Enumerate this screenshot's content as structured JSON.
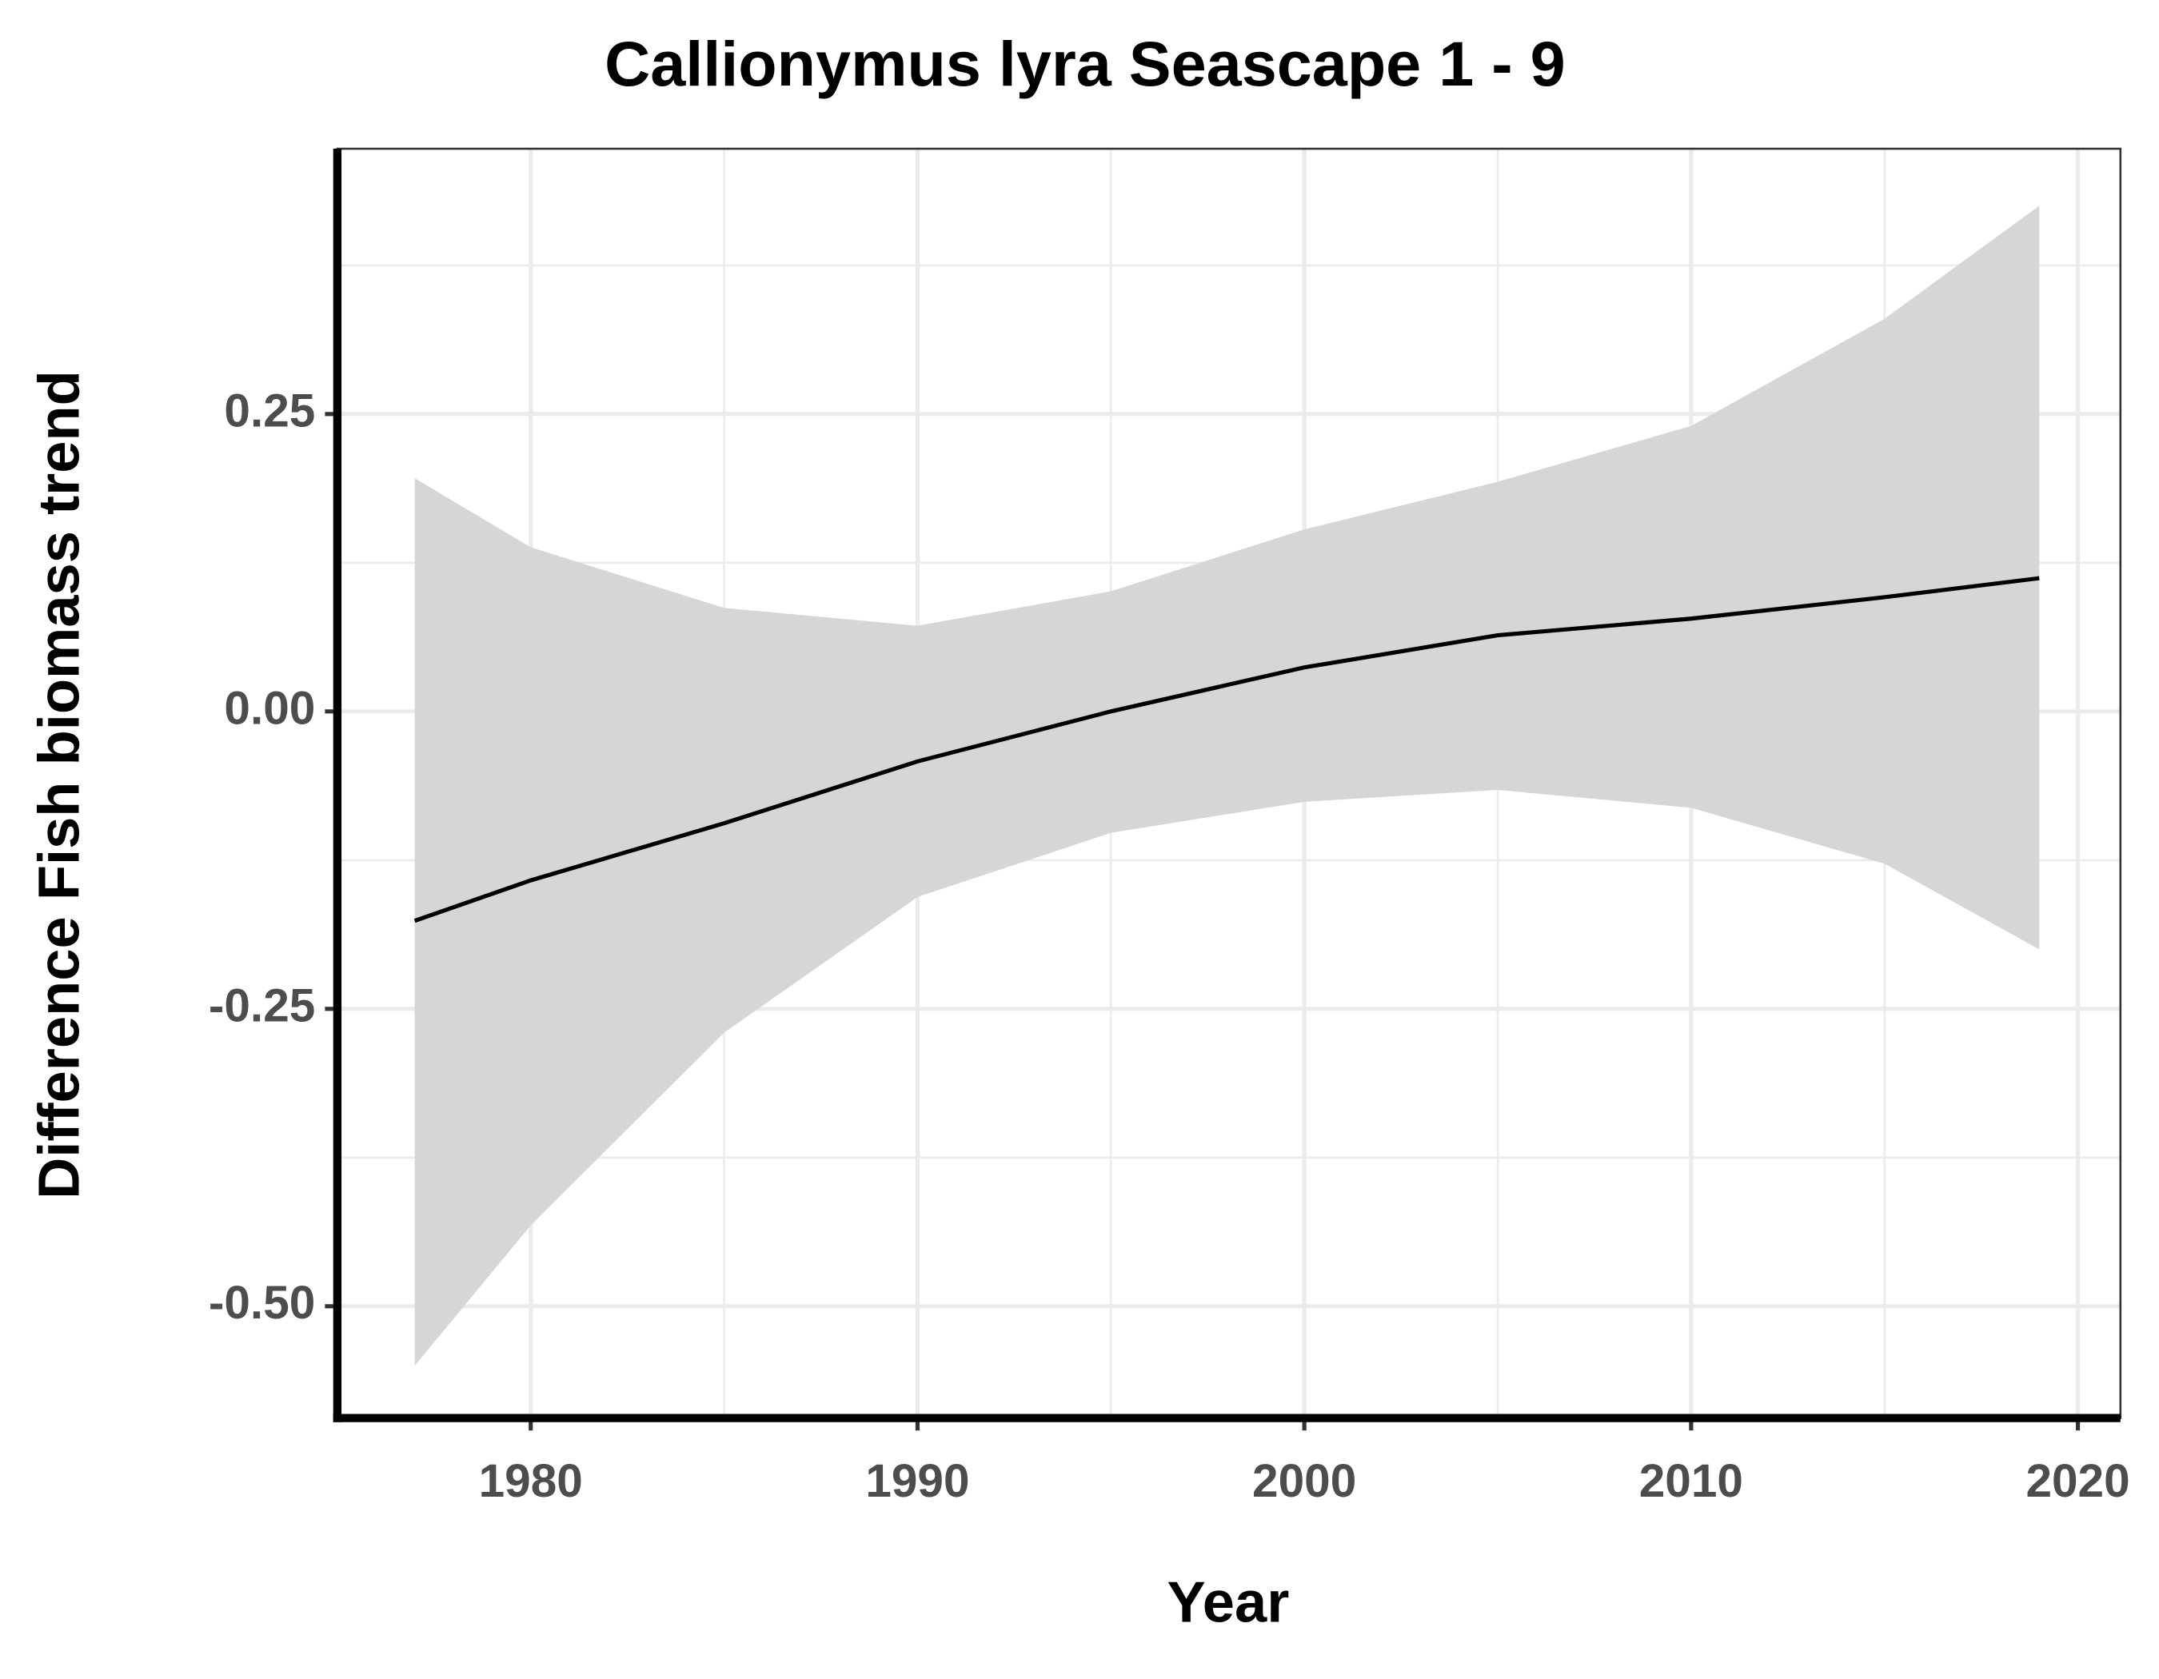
{
  "chart_data": {
    "type": "line",
    "title": "Callionymus lyra Seascape 1 - 9",
    "x_label": "Year",
    "y_label": "Difference Fish biomass trend",
    "x": [
      1977,
      1980,
      1985,
      1990,
      1995,
      2000,
      2005,
      2010,
      2015,
      2019
    ],
    "series": [
      {
        "color": "#000000",
        "band_color": "#d6d6d6",
        "values": [
          -0.176,
          -0.142,
          -0.094,
          -0.042,
          0.0,
          0.037,
          0.064,
          0.078,
          0.096,
          0.112
        ],
        "upper": [
          0.196,
          0.138,
          0.087,
          0.072,
          0.101,
          0.153,
          0.193,
          0.24,
          0.33,
          0.425
        ],
        "lower": [
          -0.55,
          -0.432,
          -0.27,
          -0.156,
          -0.102,
          -0.076,
          -0.066,
          -0.081,
          -0.128,
          -0.2
        ]
      }
    ],
    "xlim": [
      1975,
      2021.1
    ],
    "ylim": [
      -0.594,
      0.473
    ],
    "xticks": [
      1980,
      1990,
      2000,
      2010,
      2020
    ],
    "yticks": [
      {
        "value": -0.5,
        "label": "-0.50"
      },
      {
        "value": -0.25,
        "label": "-0.25"
      },
      {
        "value": 0,
        "label": "0.00"
      },
      {
        "value": 0.25,
        "label": "0.25"
      }
    ],
    "grid": true
  }
}
